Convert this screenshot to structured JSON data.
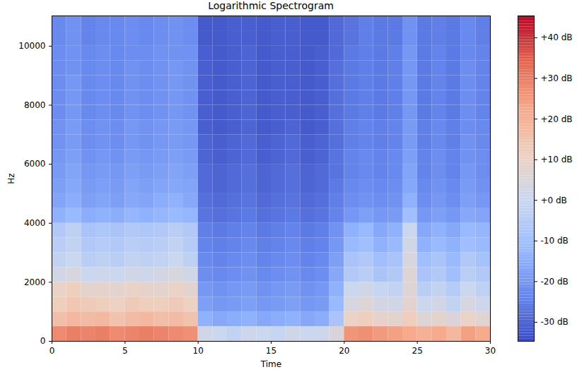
{
  "chart_data": {
    "type": "heatmap",
    "title": "Logarithmic Spectrogram",
    "x_label": "Time",
    "y_label": "Hz",
    "xlim": [
      0,
      30
    ],
    "xticks": [
      0,
      5,
      10,
      15,
      20,
      25,
      30
    ],
    "ylim": [
      0,
      11025
    ],
    "yticks": [
      0,
      2000,
      4000,
      6000,
      8000,
      10000
    ],
    "color": "coolwarm",
    "cells": {
      "x_edges": [
        0,
        1,
        2,
        3,
        4,
        5,
        6,
        7,
        8,
        9,
        10,
        11,
        12,
        13,
        14,
        15,
        16,
        17,
        18,
        19,
        20,
        21,
        22,
        23,
        24,
        25,
        26,
        27,
        28,
        29,
        30
      ],
      "y_edges": [
        0,
        500,
        1000,
        1500,
        2000,
        2500,
        3000,
        3500,
        4000,
        4500,
        5000,
        5500,
        6000,
        6500,
        7000,
        7500,
        8000,
        8500,
        9000,
        9500,
        10000,
        10500,
        11025
      ],
      "values": [
        [
          28,
          30,
          29,
          30,
          28,
          29,
          30,
          29,
          28,
          27,
          2,
          0,
          -2,
          1,
          0,
          -1,
          2,
          0,
          1,
          5,
          26,
          27,
          25,
          24,
          22,
          20,
          22,
          18,
          24,
          22
        ],
        [
          16,
          18,
          17,
          18,
          15,
          17,
          18,
          16,
          17,
          15,
          -14,
          -16,
          -15,
          -14,
          -16,
          -15,
          -14,
          -16,
          -15,
          -8,
          10,
          12,
          9,
          8,
          12,
          6,
          8,
          5,
          10,
          7
        ],
        [
          12,
          14,
          13,
          12,
          11,
          13,
          12,
          12,
          13,
          11,
          -18,
          -20,
          -19,
          -18,
          -20,
          -19,
          -18,
          -20,
          -19,
          -12,
          4,
          6,
          3,
          2,
          8,
          0,
          2,
          -2,
          4,
          1
        ],
        [
          10,
          12,
          8,
          9,
          8,
          10,
          9,
          8,
          10,
          8,
          -20,
          -21,
          -20,
          -19,
          -21,
          -20,
          -19,
          -21,
          -20,
          -14,
          0,
          2,
          -1,
          -2,
          6,
          -4,
          -2,
          -5,
          0,
          -3
        ],
        [
          2,
          4,
          0,
          1,
          0,
          2,
          1,
          3,
          4,
          2,
          -22,
          -23,
          -22,
          -21,
          -23,
          -22,
          -21,
          -23,
          -22,
          -16,
          -6,
          -4,
          -8,
          -6,
          6,
          -8,
          -6,
          -10,
          -4,
          -6
        ],
        [
          -2,
          0,
          -4,
          -3,
          -4,
          -2,
          -3,
          -2,
          0,
          -3,
          -23,
          -24,
          -23,
          -22,
          -24,
          -23,
          -22,
          -24,
          -23,
          -18,
          -8,
          -6,
          -10,
          -8,
          4,
          -10,
          -8,
          -12,
          -6,
          -9
        ],
        [
          -4,
          -2,
          -6,
          -5,
          -6,
          -4,
          -5,
          -4,
          -2,
          -5,
          -24,
          -25,
          -24,
          -23,
          -25,
          -24,
          -23,
          -25,
          -24,
          -20,
          -12,
          -10,
          -14,
          -12,
          2,
          -14,
          -12,
          -14,
          -10,
          -12
        ],
        [
          -6,
          -3,
          -8,
          -7,
          -8,
          -6,
          -7,
          -6,
          -4,
          -6,
          -25,
          -26,
          -25,
          -24,
          -26,
          -25,
          -24,
          -26,
          -25,
          -21,
          -14,
          -12,
          -16,
          -14,
          0,
          -16,
          -14,
          -16,
          -12,
          -13
        ],
        [
          -14,
          -12,
          -15,
          -14,
          -15,
          -13,
          -14,
          -13,
          -12,
          -13,
          -27,
          -28,
          -27,
          -26,
          -28,
          -27,
          -26,
          -28,
          -27,
          -24,
          -20,
          -18,
          -20,
          -19,
          -10,
          -20,
          -18,
          -20,
          -16,
          -17
        ],
        [
          -17,
          -15,
          -18,
          -17,
          -18,
          -16,
          -17,
          -15,
          -14,
          -16,
          -28,
          -29,
          -28,
          -27,
          -29,
          -28,
          -27,
          -29,
          -28,
          -25,
          -22,
          -21,
          -22,
          -21,
          -14,
          -22,
          -20,
          -22,
          -18,
          -20
        ],
        [
          -18,
          -16,
          -19,
          -18,
          -19,
          -17,
          -18,
          -17,
          -16,
          -17,
          -29,
          -30,
          -29,
          -28,
          -30,
          -29,
          -28,
          -30,
          -29,
          -26,
          -23,
          -22,
          -23,
          -22,
          -16,
          -23,
          -21,
          -23,
          -19,
          -21
        ],
        [
          -19,
          -17,
          -20,
          -19,
          -20,
          -18,
          -19,
          -18,
          -17,
          -18,
          -29,
          -30,
          -29,
          -28,
          -30,
          -29,
          -28,
          -30,
          -29,
          -27,
          -24,
          -23,
          -24,
          -23,
          -17,
          -24,
          -22,
          -24,
          -20,
          -22
        ],
        [
          -20,
          -18,
          -21,
          -20,
          -21,
          -19,
          -20,
          -19,
          -18,
          -19,
          -30,
          -31,
          -30,
          -29,
          -31,
          -30,
          -29,
          -31,
          -30,
          -27,
          -24,
          -23,
          -24,
          -23,
          -18,
          -24,
          -22,
          -24,
          -21,
          -22
        ],
        [
          -21,
          -19,
          -22,
          -21,
          -22,
          -20,
          -21,
          -20,
          -19,
          -20,
          -30,
          -31,
          -30,
          -29,
          -31,
          -30,
          -29,
          -31,
          -30,
          -28,
          -25,
          -24,
          -25,
          -24,
          -19,
          -25,
          -23,
          -25,
          -21,
          -23
        ],
        [
          -21,
          -19,
          -22,
          -21,
          -22,
          -20,
          -21,
          -20,
          -19,
          -20,
          -31,
          -32,
          -31,
          -30,
          -32,
          -31,
          -30,
          -32,
          -31,
          -28,
          -25,
          -24,
          -25,
          -24,
          -19,
          -25,
          -23,
          -25,
          -22,
          -23
        ],
        [
          -22,
          -20,
          -23,
          -22,
          -23,
          -21,
          -22,
          -21,
          -20,
          -21,
          -31,
          -32,
          -31,
          -30,
          -32,
          -31,
          -31,
          -32,
          -31,
          -28,
          -26,
          -25,
          -26,
          -25,
          -20,
          -26,
          -24,
          -26,
          -22,
          -24
        ],
        [
          -22,
          -20,
          -23,
          -22,
          -23,
          -21,
          -22,
          -21,
          -20,
          -21,
          -31,
          -32,
          -31,
          -30,
          -32,
          -31,
          -31,
          -32,
          -31,
          -28,
          -26,
          -25,
          -26,
          -25,
          -20,
          -26,
          -24,
          -26,
          -22,
          -24
        ],
        [
          -22,
          -20,
          -23,
          -22,
          -23,
          -21,
          -22,
          -21,
          -20,
          -21,
          -31,
          -32,
          -31,
          -30,
          -32,
          -31,
          -31,
          -32,
          -31,
          -28,
          -26,
          -25,
          -26,
          -25,
          -20,
          -26,
          -24,
          -26,
          -22,
          -24
        ],
        [
          -22,
          -21,
          -23,
          -22,
          -23,
          -21,
          -22,
          -21,
          -20,
          -21,
          -31,
          -32,
          -31,
          -30,
          -32,
          -31,
          -31,
          -32,
          -31,
          -28,
          -26,
          -25,
          -26,
          -25,
          -20,
          -26,
          -24,
          -26,
          -22,
          -24
        ],
        [
          -22,
          -21,
          -23,
          -22,
          -23,
          -22,
          -22,
          -21,
          -21,
          -21,
          -31,
          -32,
          -31,
          -30,
          -32,
          -31,
          -31,
          -32,
          -31,
          -29,
          -26,
          -25,
          -26,
          -25,
          -20,
          -26,
          -24,
          -26,
          -23,
          -24
        ],
        [
          -23,
          -21,
          -24,
          -23,
          -23,
          -22,
          -23,
          -22,
          -21,
          -22,
          -32,
          -32,
          -31,
          -31,
          -32,
          -31,
          -31,
          -32,
          -32,
          -29,
          -27,
          -25,
          -26,
          -26,
          -21,
          -26,
          -25,
          -26,
          -23,
          -25
        ],
        [
          -23,
          -21,
          -24,
          -23,
          -23,
          -22,
          -23,
          -22,
          -21,
          -22,
          -32,
          -32,
          -31,
          -31,
          -32,
          -31,
          -31,
          -32,
          -32,
          -29,
          -27,
          -25,
          -26,
          -26,
          -21,
          -26,
          -25,
          -26,
          -23,
          -25
        ]
      ]
    },
    "colorbar": {
      "range": [
        -34.7,
        45.4
      ],
      "ticks": [
        {
          "value": -30,
          "label": "-30 dB"
        },
        {
          "value": -20,
          "label": "-20 dB"
        },
        {
          "value": -10,
          "label": "-10 dB"
        },
        {
          "value": 0,
          "label": "+0 dB"
        },
        {
          "value": 10,
          "label": "+10 dB"
        },
        {
          "value": 20,
          "label": "+20 dB"
        },
        {
          "value": 30,
          "label": "+30 dB"
        },
        {
          "value": 40,
          "label": "+40 dB"
        }
      ]
    }
  }
}
